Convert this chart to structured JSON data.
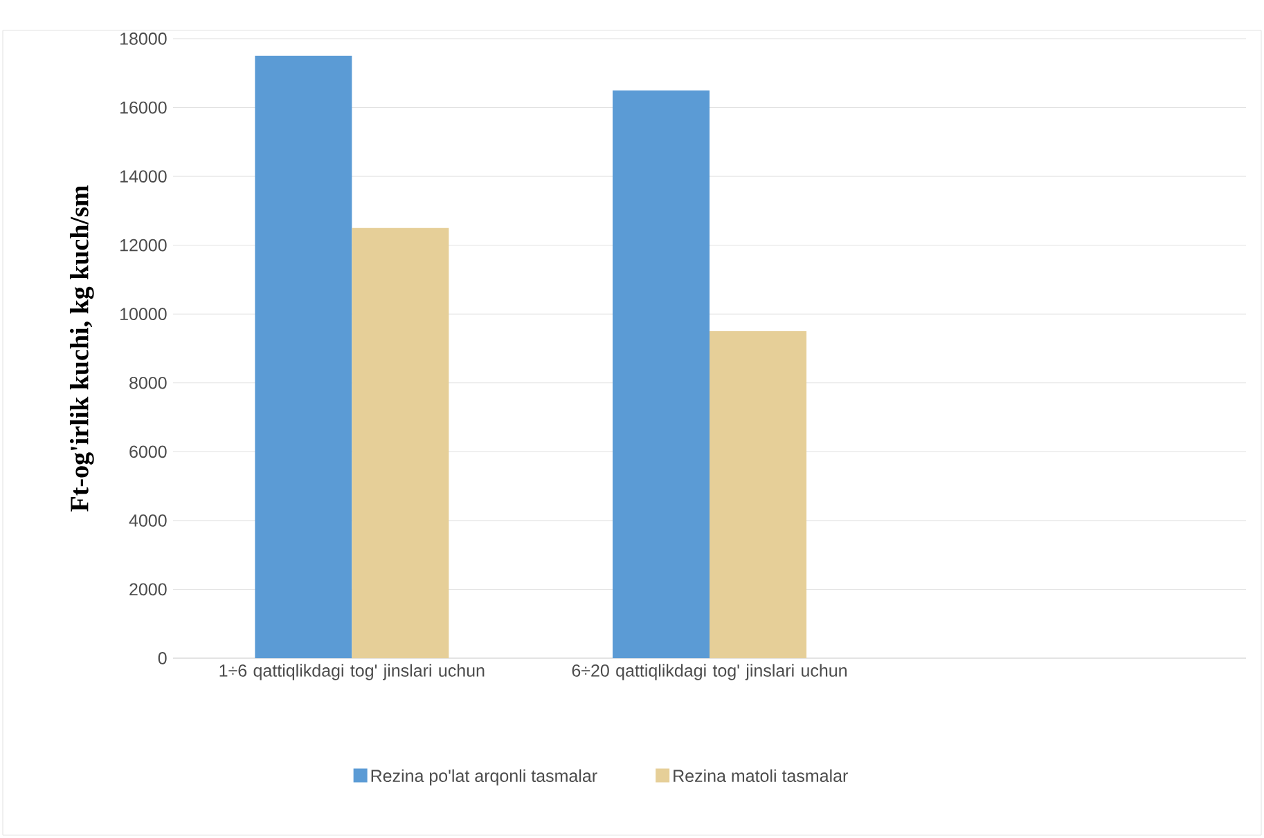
{
  "chart_data": {
    "type": "bar",
    "ylabel": "Ft-og'irlik kuchi, kg kuch/sm",
    "categories": [
      "1÷6 qattiqlikdagi tog' jinslari uchun",
      "6÷20 qattiqlikdagi tog' jinslari uchun",
      null
    ],
    "series": [
      {
        "name": "Rezina po'lat arqonli tasmalar",
        "color": "#5b9bd5",
        "values": [
          17500,
          16500,
          null
        ]
      },
      {
        "name": "Rezina matoli tasmalar",
        "color": "#e6cf98",
        "values": [
          12500,
          9500,
          null
        ]
      }
    ],
    "ylim": [
      0,
      18000
    ],
    "yticks": [
      0,
      2000,
      4000,
      6000,
      8000,
      10000,
      12000,
      14000,
      16000,
      18000
    ],
    "grid": "y",
    "legend": "bottom"
  }
}
